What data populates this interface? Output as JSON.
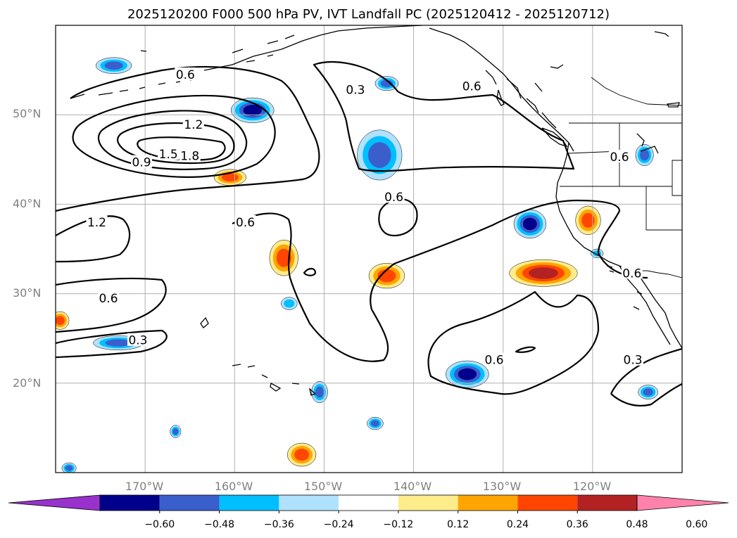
{
  "title": "2025120200 F000 500 hPa PV, IVT Landfall PC (2025120412 - 2025120712)",
  "map": {
    "extent": {
      "lon_min": -180,
      "lon_max": -110,
      "lat_min": 10,
      "lat_max": 60
    },
    "gridlines": true,
    "lat_ticks": [
      {
        "label": "50°N",
        "value": 50
      },
      {
        "label": "40°N",
        "value": 40
      },
      {
        "label": "30°N",
        "value": 30
      },
      {
        "label": "20°N",
        "value": 20
      }
    ],
    "lon_ticks": [
      {
        "label": "170°W",
        "value": -170
      },
      {
        "label": "160°W",
        "value": -160
      },
      {
        "label": "150°W",
        "value": -150
      },
      {
        "label": "140°W",
        "value": -140
      },
      {
        "label": "130°W",
        "value": -130
      },
      {
        "label": "120°W",
        "value": -120
      }
    ],
    "contour_labels": [
      {
        "text": "0.6",
        "lon": -165.5,
        "lat": 54.5
      },
      {
        "text": "0.3",
        "lon": -146.5,
        "lat": 52.8
      },
      {
        "text": "0.6",
        "lon": -133.5,
        "lat": 53.2
      },
      {
        "text": "1.2",
        "lon": -164.6,
        "lat": 48.9
      },
      {
        "text": "1.5",
        "lon": -167.4,
        "lat": 45.6
      },
      {
        "text": "1.8",
        "lon": -165.0,
        "lat": 45.4
      },
      {
        "text": "0.9",
        "lon": -170.4,
        "lat": 44.7
      },
      {
        "text": "0.6",
        "lon": -117.0,
        "lat": 45.3
      },
      {
        "text": "0.6",
        "lon": -142.2,
        "lat": 40.8
      },
      {
        "text": "1.2",
        "lon": -175.4,
        "lat": 38.0
      },
      {
        "text": "0.6",
        "lon": -158.8,
        "lat": 38.0
      },
      {
        "text": "0.6",
        "lon": -115.6,
        "lat": 32.3
      },
      {
        "text": "0.6",
        "lon": -174.1,
        "lat": 29.5
      },
      {
        "text": "0.3",
        "lon": -170.8,
        "lat": 24.8
      },
      {
        "text": "0.6",
        "lon": -131.0,
        "lat": 22.6
      },
      {
        "text": "0.3",
        "lon": -115.5,
        "lat": 22.6
      }
    ],
    "colors": {
      "coast": "#000000",
      "contour": "#000000",
      "grid": "#b0b0b0"
    }
  },
  "colorbar": {
    "levels": [
      -0.72,
      -0.6,
      -0.48,
      -0.36,
      -0.24,
      -0.12,
      0.12,
      0.24,
      0.36,
      0.48,
      0.6,
      0.72
    ],
    "tick_labels": [
      "−0.60",
      "−0.48",
      "−0.36",
      "−0.24",
      "−0.12",
      "0.12",
      "0.24",
      "0.36",
      "0.48",
      "0.60"
    ],
    "colors": [
      "#9932CC",
      "#00008B",
      "#3A5FCD",
      "#00BFFF",
      "#B0E2FF",
      "#FFFFFF",
      "#FFEC8B",
      "#FFA500",
      "#FF4500",
      "#B22222",
      "#FF82AB"
    ],
    "extend": "both"
  },
  "chart_data": {
    "type": "heatmap",
    "title": "2025120200 F000 500 hPa PV, IVT Landfall PC (2025120412 - 2025120712)",
    "xlabel": "",
    "ylabel": "",
    "xlim": [
      -180,
      -110
    ],
    "ylim": [
      10,
      60
    ],
    "filled_field_levels": [
      -0.72,
      -0.6,
      -0.48,
      -0.36,
      -0.24,
      -0.12,
      0.12,
      0.24,
      0.36,
      0.48,
      0.6,
      0.72
    ],
    "contour_levels": [
      0.3,
      0.6,
      0.9,
      1.2,
      1.5,
      1.8
    ],
    "anomalies": [
      {
        "lon": -173.5,
        "lat": 55.5,
        "rx": 2.0,
        "ry": 0.9,
        "value": -0.36
      },
      {
        "lon": -158.0,
        "lat": 50.5,
        "rx": 2.4,
        "ry": 1.4,
        "value": -0.5
      },
      {
        "lon": -160.5,
        "lat": 43.0,
        "rx": 1.8,
        "ry": 0.9,
        "value": 0.4
      },
      {
        "lon": -143.8,
        "lat": 45.5,
        "rx": 2.5,
        "ry": 2.8,
        "value": -0.4
      },
      {
        "lon": -143.0,
        "lat": 53.5,
        "rx": 1.3,
        "ry": 0.8,
        "value": -0.36
      },
      {
        "lon": -154.5,
        "lat": 34.0,
        "rx": 1.6,
        "ry": 2.0,
        "value": 0.45
      },
      {
        "lon": -143.0,
        "lat": 32.0,
        "rx": 2.0,
        "ry": 1.4,
        "value": 0.42
      },
      {
        "lon": -127.0,
        "lat": 37.8,
        "rx": 1.8,
        "ry": 1.6,
        "value": -0.55
      },
      {
        "lon": -120.5,
        "lat": 38.2,
        "rx": 1.4,
        "ry": 1.6,
        "value": 0.45
      },
      {
        "lon": -125.5,
        "lat": 32.3,
        "rx": 3.8,
        "ry": 1.5,
        "value": 0.48
      },
      {
        "lon": -114.2,
        "lat": 45.5,
        "rx": 1.0,
        "ry": 1.2,
        "value": -0.36
      },
      {
        "lon": -134.0,
        "lat": 21.0,
        "rx": 2.4,
        "ry": 1.5,
        "value": -0.52
      },
      {
        "lon": -173.0,
        "lat": 24.5,
        "rx": 2.8,
        "ry": 0.8,
        "value": -0.4
      },
      {
        "lon": -179.5,
        "lat": 27.0,
        "rx": 1.0,
        "ry": 1.0,
        "value": 0.4
      },
      {
        "lon": -150.5,
        "lat": 19.0,
        "rx": 0.9,
        "ry": 1.2,
        "value": -0.36
      },
      {
        "lon": -152.5,
        "lat": 12.0,
        "rx": 1.6,
        "ry": 1.3,
        "value": 0.42
      },
      {
        "lon": -144.3,
        "lat": 15.5,
        "rx": 0.9,
        "ry": 0.7,
        "value": -0.36
      },
      {
        "lon": -166.6,
        "lat": 14.6,
        "rx": 0.6,
        "ry": 0.7,
        "value": -0.36
      },
      {
        "lon": -113.8,
        "lat": 19.0,
        "rx": 1.1,
        "ry": 0.8,
        "value": -0.36
      },
      {
        "lon": -178.5,
        "lat": 10.5,
        "rx": 0.8,
        "ry": 0.6,
        "value": -0.36
      },
      {
        "lon": -153.9,
        "lat": 28.9,
        "rx": 0.9,
        "ry": 0.7,
        "value": -0.3
      },
      {
        "lon": -119.5,
        "lat": 34.5,
        "rx": 0.7,
        "ry": 0.5,
        "value": -0.3
      }
    ]
  }
}
